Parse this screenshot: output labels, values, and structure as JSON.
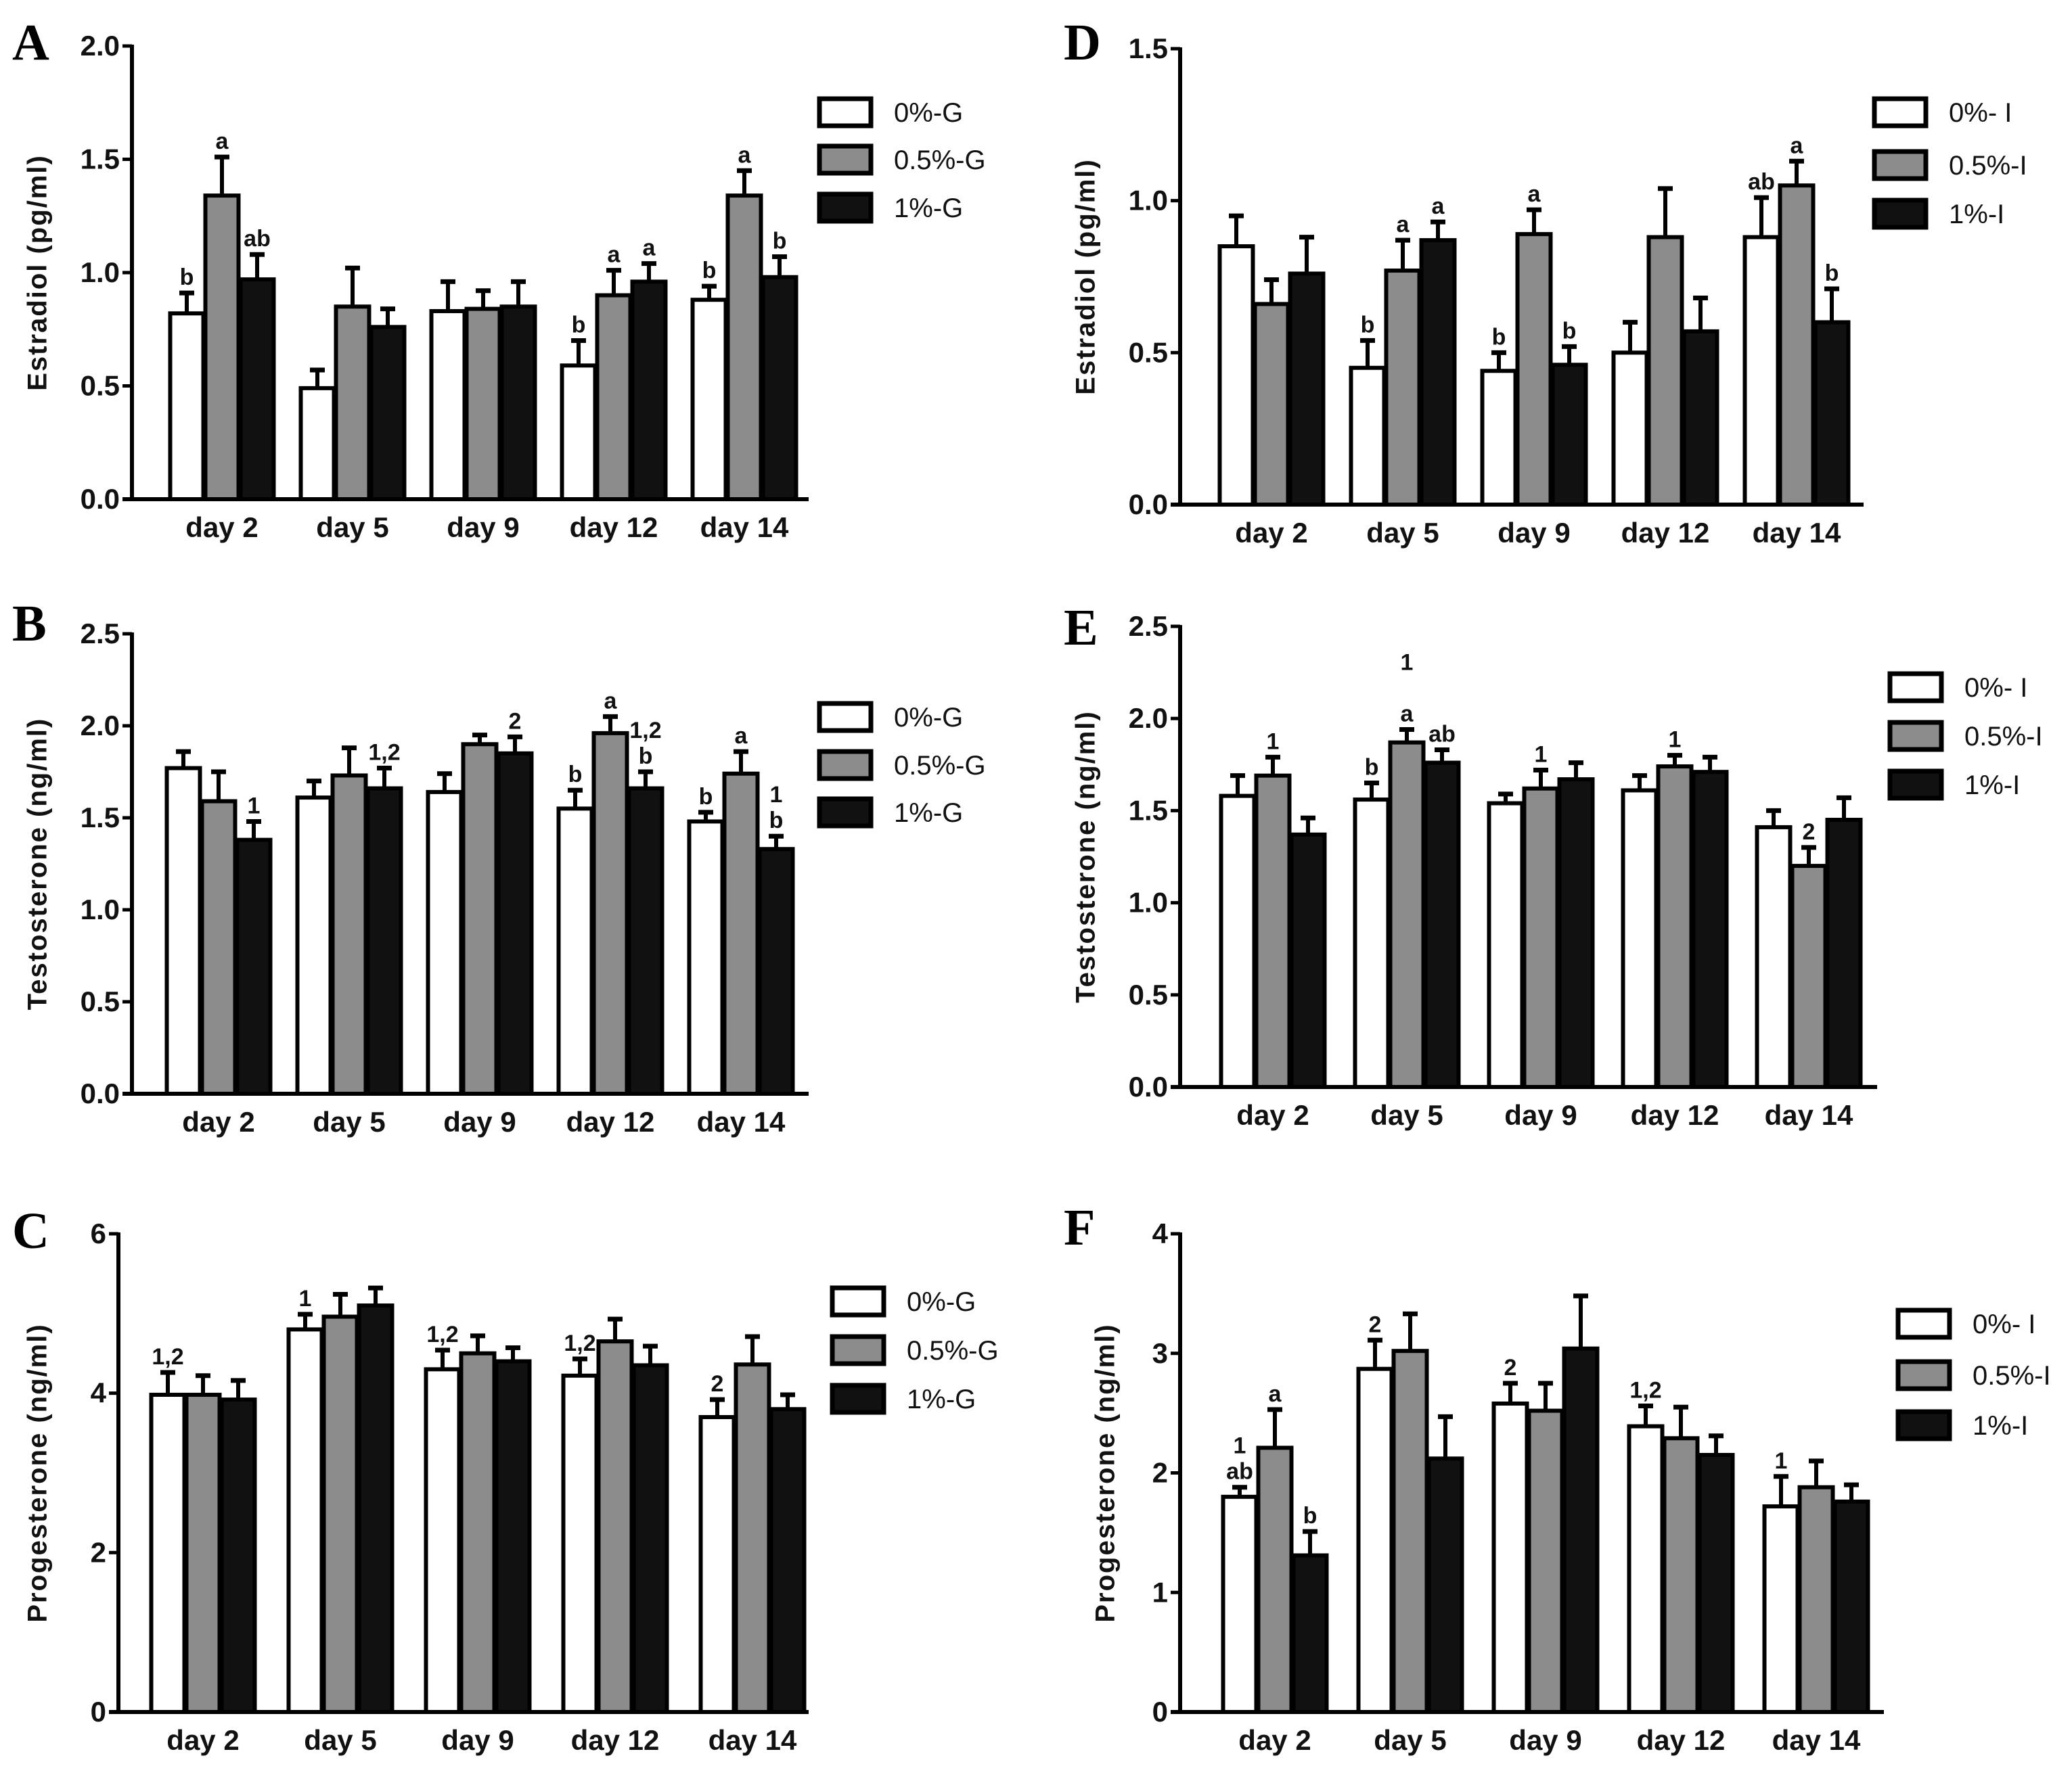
{
  "colors": {
    "0": "#ffffff",
    "1": "#8c8c8c",
    "2": "#111111",
    "stroke": "#000000"
  },
  "chart_data": [
    {
      "panel": "A",
      "type": "bar",
      "ylabel": "Estradiol (pg/ml)",
      "ylim": [
        0,
        2.0
      ],
      "yticks": [
        "0.0",
        "0.5",
        "1.0",
        "1.5",
        "2.0"
      ],
      "ytick_values": [
        0,
        0.5,
        1.0,
        1.5,
        2.0
      ],
      "categories": [
        "day 2",
        "day 5",
        "day 9",
        "day 12",
        "day 14"
      ],
      "legend": "right",
      "series": [
        {
          "name": "0%-G",
          "values": [
            0.82,
            0.49,
            0.83,
            0.59,
            0.88
          ],
          "errors": [
            0.09,
            0.08,
            0.13,
            0.11,
            0.06
          ],
          "labels": [
            [
              "b"
            ],
            [],
            [],
            [
              "b"
            ],
            [
              "b"
            ]
          ]
        },
        {
          "name": "0.5%-G",
          "values": [
            1.34,
            0.85,
            0.84,
            0.9,
            1.34
          ],
          "errors": [
            0.17,
            0.17,
            0.08,
            0.11,
            0.11
          ],
          "labels": [
            [
              "a"
            ],
            [],
            [],
            [
              "a"
            ],
            [
              "a"
            ]
          ]
        },
        {
          "name": "1%-G",
          "values": [
            0.97,
            0.76,
            0.85,
            0.96,
            0.98
          ],
          "errors": [
            0.11,
            0.08,
            0.11,
            0.08,
            0.09
          ],
          "labels": [
            [
              "ab"
            ],
            [],
            [],
            [
              "a"
            ],
            [
              "b"
            ]
          ]
        }
      ]
    },
    {
      "panel": "B",
      "type": "bar",
      "ylabel": "Testosterone (ng/ml)",
      "ylim": [
        0,
        2.5
      ],
      "yticks": [
        "0.0",
        "0.5",
        "1.0",
        "1.5",
        "2.0",
        "2.5"
      ],
      "ytick_values": [
        0,
        0.5,
        1.0,
        1.5,
        2.0,
        2.5
      ],
      "categories": [
        "day 2",
        "day 5",
        "day 9",
        "day 12",
        "day 14"
      ],
      "legend": "right",
      "series": [
        {
          "name": "0%-G",
          "values": [
            1.77,
            1.61,
            1.64,
            1.55,
            1.48
          ],
          "errors": [
            0.09,
            0.09,
            0.1,
            0.1,
            0.05
          ],
          "labels": [
            [],
            [],
            [],
            [
              "b"
            ],
            [
              "b"
            ]
          ]
        },
        {
          "name": "0.5%-G",
          "values": [
            1.59,
            1.73,
            1.9,
            1.96,
            1.74
          ],
          "errors": [
            0.16,
            0.15,
            0.05,
            0.09,
            0.12
          ],
          "labels": [
            [],
            [],
            [],
            [
              "a"
            ],
            [
              "a"
            ]
          ]
        },
        {
          "name": "1%-G",
          "values": [
            1.38,
            1.66,
            1.85,
            1.66,
            1.33
          ],
          "errors": [
            0.1,
            0.11,
            0.09,
            0.09,
            0.07
          ],
          "labels": [
            [
              "1"
            ],
            [
              "1,2"
            ],
            [
              "2"
            ],
            [
              "1,2",
              "b"
            ],
            [
              "1",
              "b"
            ]
          ]
        }
      ]
    },
    {
      "panel": "C",
      "type": "bar",
      "ylabel": "Progesterone (ng/ml)",
      "ylim": [
        0,
        6
      ],
      "yticks": [
        "0",
        "2",
        "4",
        "6"
      ],
      "ytick_values": [
        0,
        2,
        4,
        6
      ],
      "categories": [
        "day 2",
        "day 5",
        "day 9",
        "day 12",
        "day 14"
      ],
      "legend": "right",
      "series": [
        {
          "name": "0%-G",
          "values": [
            3.98,
            4.8,
            4.3,
            4.22,
            3.7
          ],
          "errors": [
            0.28,
            0.19,
            0.24,
            0.21,
            0.22
          ],
          "labels": [
            [
              "1,2"
            ],
            [
              "1"
            ],
            [
              "1,2"
            ],
            [
              "1,2"
            ],
            [
              "2"
            ]
          ]
        },
        {
          "name": "0.5%-G",
          "values": [
            3.98,
            4.96,
            4.5,
            4.65,
            4.36
          ],
          "errors": [
            0.24,
            0.28,
            0.22,
            0.28,
            0.35
          ],
          "labels": [
            [],
            [],
            [],
            [],
            []
          ]
        },
        {
          "name": "1%-G",
          "values": [
            3.92,
            5.1,
            4.4,
            4.35,
            3.8
          ],
          "errors": [
            0.24,
            0.22,
            0.17,
            0.24,
            0.18
          ],
          "labels": [
            [],
            [],
            [],
            [],
            []
          ]
        }
      ]
    },
    {
      "panel": "D",
      "type": "bar",
      "ylabel": "Estradiol (pg/ml)",
      "ylim": [
        0,
        1.5
      ],
      "yticks": [
        "0.0",
        "0.5",
        "1.0",
        "1.5"
      ],
      "ytick_values": [
        0,
        0.5,
        1.0,
        1.5
      ],
      "categories": [
        "day 2",
        "day 5",
        "day 9",
        "day 12",
        "day 14"
      ],
      "legend": "right",
      "series": [
        {
          "name": "0%- I",
          "values": [
            0.85,
            0.45,
            0.44,
            0.5,
            0.88
          ],
          "errors": [
            0.1,
            0.09,
            0.06,
            0.1,
            0.13
          ],
          "labels": [
            [],
            [
              "b"
            ],
            [
              "b"
            ],
            [],
            [
              "ab"
            ]
          ]
        },
        {
          "name": "0.5%-I",
          "values": [
            0.66,
            0.77,
            0.89,
            0.88,
            1.05
          ],
          "errors": [
            0.08,
            0.1,
            0.08,
            0.16,
            0.08
          ],
          "labels": [
            [],
            [
              "a"
            ],
            [
              "a"
            ],
            [],
            [
              "a"
            ]
          ]
        },
        {
          "name": "1%-I",
          "values": [
            0.76,
            0.87,
            0.46,
            0.57,
            0.6
          ],
          "errors": [
            0.12,
            0.06,
            0.06,
            0.11,
            0.11
          ],
          "labels": [
            [],
            [
              "a"
            ],
            [
              "b"
            ],
            [],
            [
              "b"
            ]
          ]
        }
      ]
    },
    {
      "panel": "E",
      "type": "bar",
      "ylabel": "Testosterone (ng/ml)",
      "ylim": [
        0,
        2.5
      ],
      "yticks": [
        "0.0",
        "0.5",
        "1.0",
        "1.5",
        "2.0",
        "2.5"
      ],
      "ytick_values": [
        0,
        0.5,
        1.0,
        1.5,
        2.0,
        2.5
      ],
      "categories": [
        "day 2",
        "day 5",
        "day 9",
        "day 12",
        "day 14"
      ],
      "legend": "right",
      "series": [
        {
          "name": "0%- I",
          "values": [
            1.58,
            1.56,
            1.54,
            1.61,
            1.41
          ],
          "errors": [
            0.11,
            0.09,
            0.05,
            0.08,
            0.09
          ],
          "labels": [
            [],
            [
              "b"
            ],
            [],
            [],
            []
          ]
        },
        {
          "name": "0.5%-I",
          "values": [
            1.69,
            1.87,
            1.62,
            1.74,
            1.2
          ],
          "errors": [
            0.1,
            0.07,
            0.1,
            0.06,
            0.1
          ],
          "labels": [
            [
              "1"
            ],
            [
              "1",
              "",
              "a"
            ],
            [
              "1"
            ],
            [
              "1"
            ],
            [
              "2"
            ]
          ]
        },
        {
          "name": "1%-I",
          "values": [
            1.37,
            1.76,
            1.67,
            1.71,
            1.45
          ],
          "errors": [
            0.09,
            0.07,
            0.09,
            0.08,
            0.12
          ],
          "labels": [
            [],
            [
              "ab"
            ],
            [],
            [],
            []
          ]
        }
      ]
    },
    {
      "panel": "F",
      "type": "bar",
      "ylabel": "Progesterone (ng/ml)",
      "ylim": [
        0,
        4
      ],
      "yticks": [
        "0",
        "1",
        "2",
        "3",
        "4"
      ],
      "ytick_values": [
        0,
        1,
        2,
        3,
        4
      ],
      "categories": [
        "day 2",
        "day 5",
        "day 9",
        "day 12",
        "day 14"
      ],
      "legend": "right",
      "series": [
        {
          "name": "0%- I",
          "values": [
            1.8,
            2.87,
            2.58,
            2.39,
            1.72
          ],
          "errors": [
            0.08,
            0.24,
            0.17,
            0.17,
            0.25
          ],
          "labels": [
            [
              "1",
              "ab"
            ],
            [
              "2"
            ],
            [
              "2"
            ],
            [
              "1,2"
            ],
            [
              "1"
            ]
          ]
        },
        {
          "name": "0.5%-I",
          "values": [
            2.21,
            3.02,
            2.52,
            2.29,
            1.88
          ],
          "errors": [
            0.32,
            0.31,
            0.23,
            0.26,
            0.22
          ],
          "labels": [
            [
              "a"
            ],
            [],
            [],
            [],
            []
          ]
        },
        {
          "name": "1%-I",
          "values": [
            1.31,
            2.12,
            3.04,
            2.15,
            1.76
          ],
          "errors": [
            0.2,
            0.35,
            0.44,
            0.16,
            0.14
          ],
          "labels": [
            [
              "b"
            ],
            [],
            [],
            [],
            []
          ]
        }
      ]
    }
  ]
}
